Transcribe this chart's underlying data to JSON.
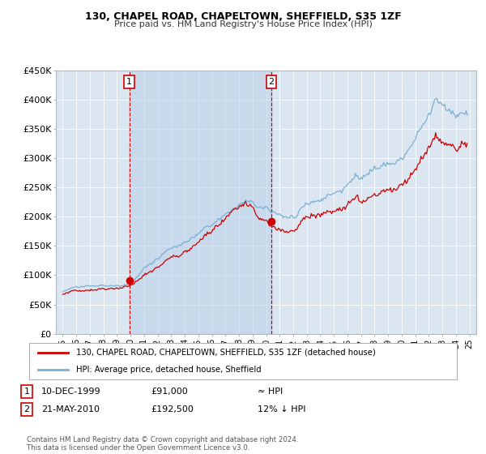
{
  "title_line1": "130, CHAPEL ROAD, CHAPELTOWN, SHEFFIELD, S35 1ZF",
  "title_line2": "Price paid vs. HM Land Registry's House Price Index (HPI)",
  "background_color": "#ffffff",
  "plot_bg_color": "#dce6f0",
  "hpi_color": "#7ab0d4",
  "price_color": "#cc0000",
  "sale1_date_num": 1999.917,
  "sale1_price": 91000,
  "sale2_date_num": 2010.388,
  "sale2_price": 192500,
  "legend_entries": [
    "130, CHAPEL ROAD, CHAPELTOWN, SHEFFIELD, S35 1ZF (detached house)",
    "HPI: Average price, detached house, Sheffield"
  ],
  "table_rows": [
    [
      "1",
      "10-DEC-1999",
      "£91,000",
      "≈ HPI"
    ],
    [
      "2",
      "21-MAY-2010",
      "£192,500",
      "12% ↓ HPI"
    ]
  ],
  "footer_text": "Contains HM Land Registry data © Crown copyright and database right 2024.\nThis data is licensed under the Open Government Licence v3.0.",
  "ylim": [
    0,
    450000
  ],
  "xlim_start": 1994.5,
  "xlim_end": 2025.5
}
